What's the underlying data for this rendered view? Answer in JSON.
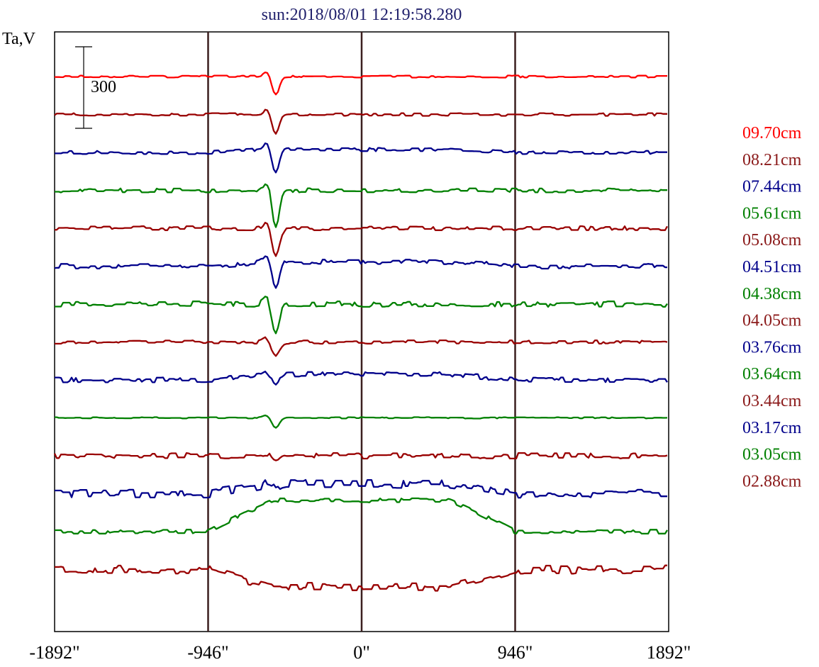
{
  "chart_data": {
    "type": "line",
    "title": "sun:2018/08/01 12:19:58.280",
    "ylabel": "Ta,V",
    "scale_bar_label": "300",
    "scale_bar_value": 300,
    "x_ticks": [
      {
        "value": -1892,
        "label": "-1892\""
      },
      {
        "value": -946,
        "label": "-946\""
      },
      {
        "value": 0,
        "label": "0\""
      },
      {
        "value": 946,
        "label": "946\""
      },
      {
        "value": 1892,
        "label": "1892\""
      }
    ],
    "xlim": [
      -1892,
      1892
    ],
    "vertical_lines": [
      -946,
      0,
      946
    ],
    "dip_position": -530,
    "series": [
      {
        "name": "09.70cm",
        "color": "#ff0000",
        "dip": 25,
        "noise": 1.5,
        "hump": 0
      },
      {
        "name": "08.21cm",
        "color": "#990000",
        "dip": 28,
        "noise": 2.0,
        "hump": 0
      },
      {
        "name": "07.44cm",
        "color": "#00008b",
        "dip": 34,
        "noise": 2.5,
        "hump": 4
      },
      {
        "name": "05.61cm",
        "color": "#008000",
        "dip": 55,
        "noise": 3.0,
        "hump": 0
      },
      {
        "name": "05.08cm",
        "color": "#990000",
        "dip": 38,
        "noise": 3.0,
        "hump": 0
      },
      {
        "name": "04.51cm",
        "color": "#00008b",
        "dip": 40,
        "noise": 3.5,
        "hump": 6
      },
      {
        "name": "04.38cm",
        "color": "#008000",
        "dip": 38,
        "noise": 4.0,
        "hump": 0
      },
      {
        "name": "04.05cm",
        "color": "#990000",
        "dip": 22,
        "noise": 2.5,
        "hump": 0
      },
      {
        "name": "03.76cm",
        "color": "#00008b",
        "dip": 18,
        "noise": 3.5,
        "hump": 8
      },
      {
        "name": "03.64cm",
        "color": "#008000",
        "dip": 14,
        "noise": 1.0,
        "hump": 0
      },
      {
        "name": "03.44cm",
        "color": "#990000",
        "dip": 8,
        "noise": 4.0,
        "hump": 0
      },
      {
        "name": "03.17cm",
        "color": "#00008b",
        "dip": 6,
        "noise": 6.0,
        "hump": 14
      },
      {
        "name": "03.05cm",
        "color": "#008000",
        "dip": 0,
        "noise": 3.0,
        "hump": 44
      },
      {
        "name": "02.88cm",
        "color": "#990000",
        "dip": 0,
        "noise": 6.0,
        "hump": -24
      }
    ]
  }
}
